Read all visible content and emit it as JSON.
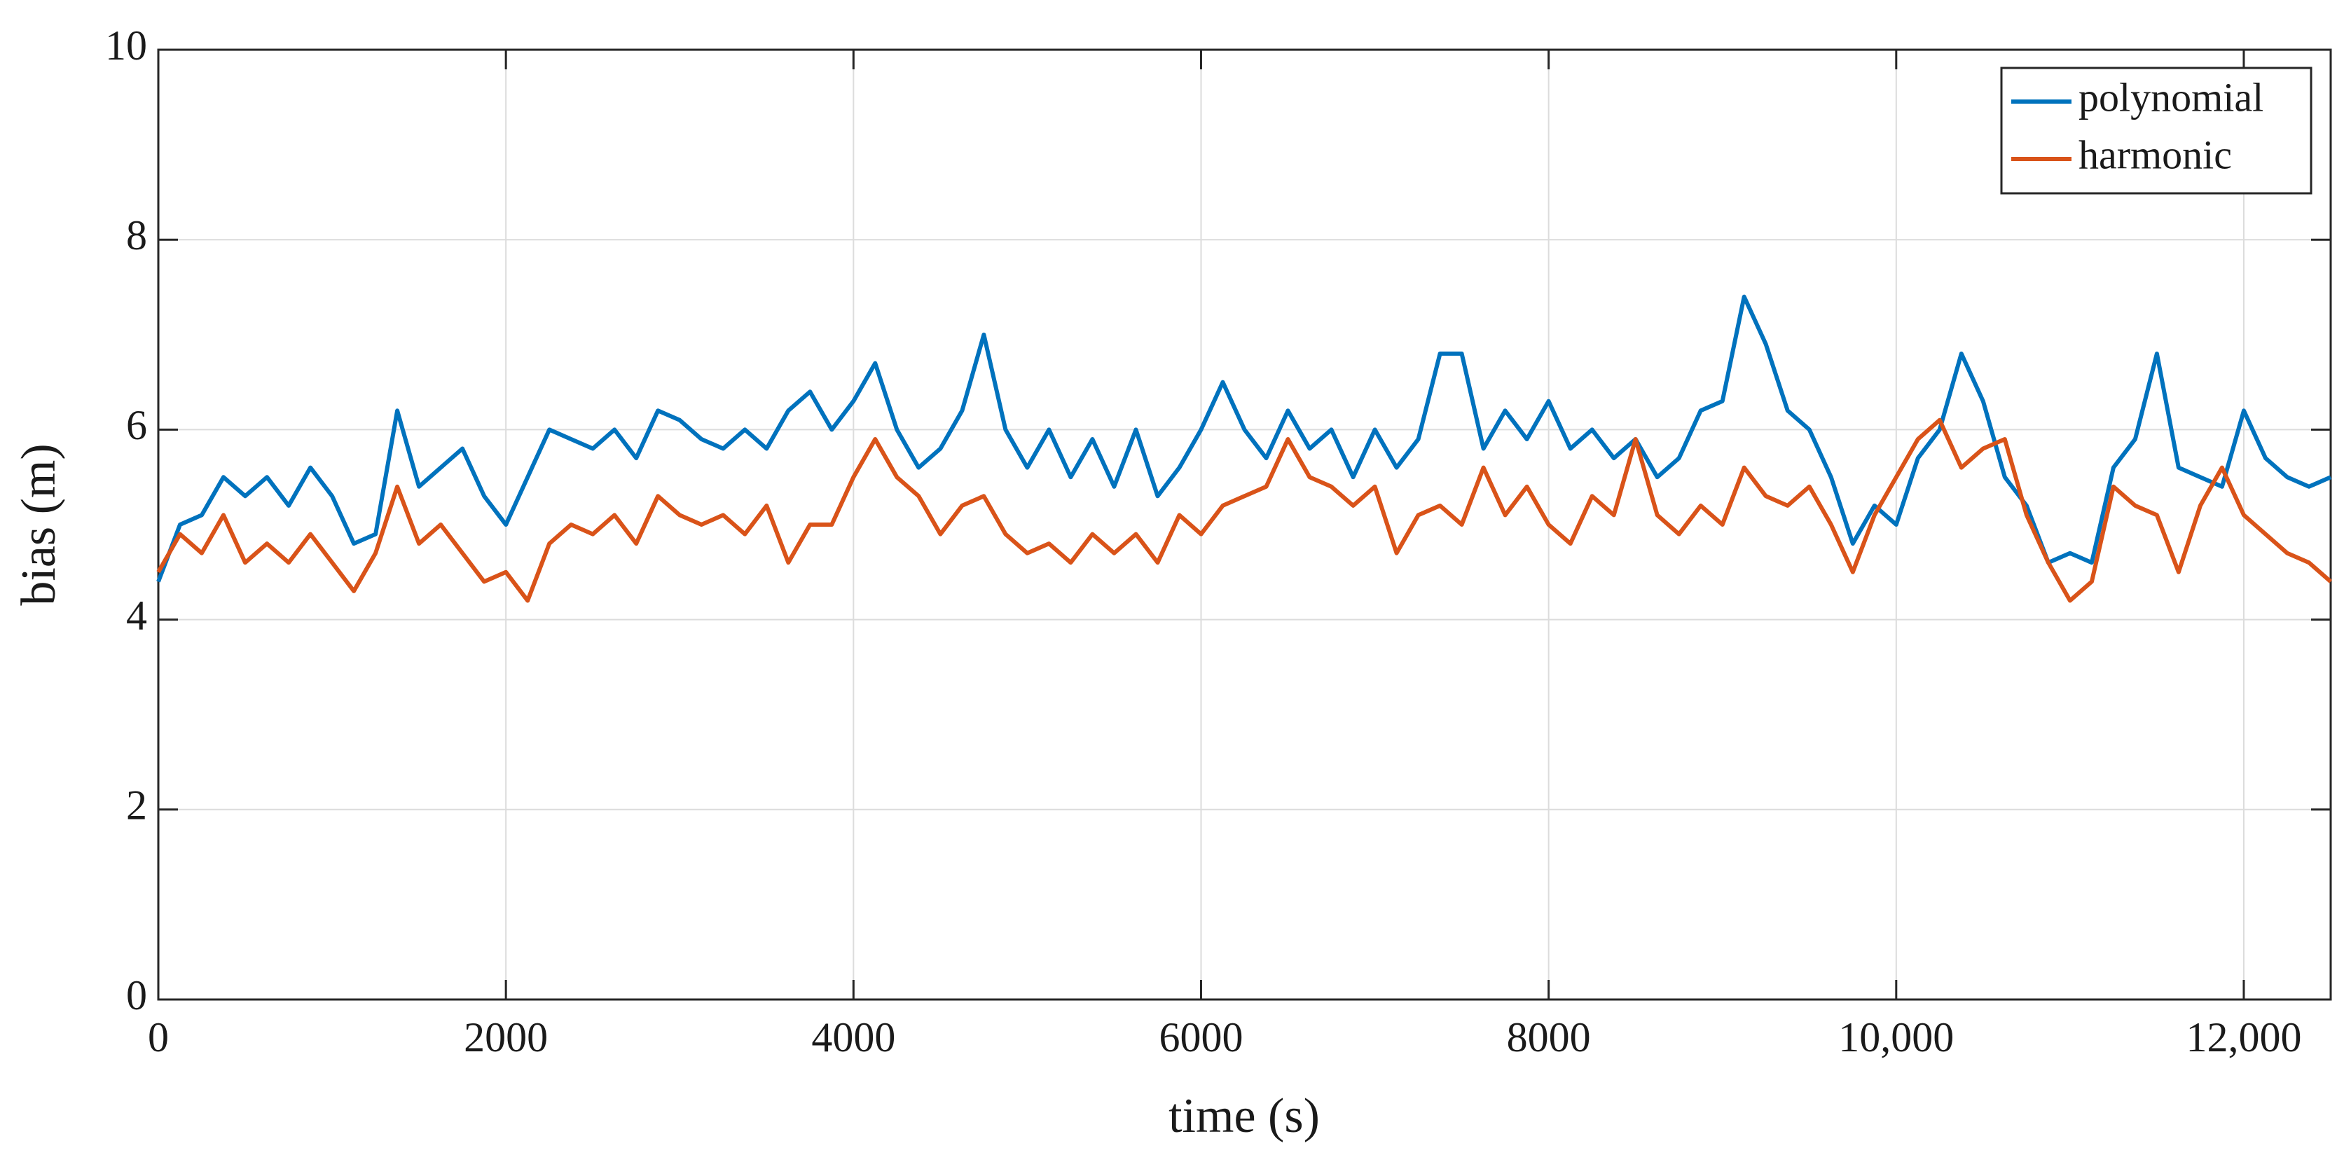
{
  "chart_data": {
    "type": "line",
    "xlabel": "time (s)",
    "ylabel": "bias (m)",
    "x": [
      0,
      125,
      250,
      375,
      500,
      625,
      750,
      875,
      1000,
      1125,
      1250,
      1375,
      1500,
      1625,
      1750,
      1875,
      2000,
      2125,
      2250,
      2375,
      2500,
      2625,
      2750,
      2875,
      3000,
      3125,
      3250,
      3375,
      3500,
      3625,
      3750,
      3875,
      4000,
      4125,
      4250,
      4375,
      4500,
      4625,
      4750,
      4875,
      5000,
      5125,
      5250,
      5375,
      5500,
      5625,
      5750,
      5875,
      6000,
      6125,
      6250,
      6375,
      6500,
      6625,
      6750,
      6875,
      7000,
      7125,
      7250,
      7375,
      7500,
      7625,
      7750,
      7875,
      8000,
      8125,
      8250,
      8375,
      8500,
      8625,
      8750,
      8875,
      9000,
      9125,
      9250,
      9375,
      9500,
      9625,
      9750,
      9875,
      10000,
      10125,
      10250,
      10375,
      10500,
      10625,
      10750,
      10875,
      11000,
      11125,
      11250,
      11375,
      11500,
      11625,
      11750,
      11875,
      12000,
      12125,
      12250,
      12375,
      12500
    ],
    "series": [
      {
        "name": "polynomial",
        "color": "#0072bd",
        "values": [
          4.4,
          5.0,
          5.1,
          5.5,
          5.3,
          5.5,
          5.2,
          5.6,
          5.3,
          4.8,
          4.9,
          6.2,
          5.4,
          5.6,
          5.8,
          5.3,
          5.0,
          5.5,
          6.0,
          5.9,
          5.8,
          6.0,
          5.7,
          6.2,
          6.1,
          5.9,
          5.8,
          6.0,
          5.8,
          6.2,
          6.4,
          6.0,
          6.3,
          6.7,
          6.0,
          5.6,
          5.8,
          6.2,
          7.0,
          6.0,
          5.6,
          6.0,
          5.5,
          5.9,
          5.4,
          6.0,
          5.3,
          5.6,
          6.0,
          6.5,
          6.0,
          5.7,
          6.2,
          5.8,
          6.0,
          5.5,
          6.0,
          5.6,
          5.9,
          6.8,
          6.8,
          5.8,
          6.2,
          5.9,
          6.3,
          5.8,
          6.0,
          5.7,
          5.9,
          5.5,
          5.7,
          6.2,
          6.3,
          7.4,
          6.9,
          6.2,
          6.0,
          5.5,
          4.8,
          5.2,
          5.0,
          5.7,
          6.0,
          6.8,
          6.3,
          5.5,
          5.2,
          4.6,
          4.7,
          4.6,
          5.6,
          5.9,
          6.8,
          5.6,
          5.5,
          5.4,
          6.2,
          5.7,
          5.5,
          5.4,
          5.5
        ]
      },
      {
        "name": "harmonic",
        "color": "#d95319",
        "values": [
          4.5,
          4.9,
          4.7,
          5.1,
          4.6,
          4.8,
          4.6,
          4.9,
          4.6,
          4.3,
          4.7,
          5.4,
          4.8,
          5.0,
          4.7,
          4.4,
          4.5,
          4.2,
          4.8,
          5.0,
          4.9,
          5.1,
          4.8,
          5.3,
          5.1,
          5.0,
          5.1,
          4.9,
          5.2,
          4.6,
          5.0,
          5.0,
          5.5,
          5.9,
          5.5,
          5.3,
          4.9,
          5.2,
          5.3,
          4.9,
          4.7,
          4.8,
          4.6,
          4.9,
          4.7,
          4.9,
          4.6,
          5.1,
          4.9,
          5.2,
          5.3,
          5.4,
          5.9,
          5.5,
          5.4,
          5.2,
          5.4,
          4.7,
          5.1,
          5.2,
          5.0,
          5.6,
          5.1,
          5.4,
          5.0,
          4.8,
          5.3,
          5.1,
          5.9,
          5.1,
          4.9,
          5.2,
          5.0,
          5.6,
          5.3,
          5.2,
          5.4,
          5.0,
          4.5,
          5.1,
          5.5,
          5.9,
          6.1,
          5.6,
          5.8,
          5.9,
          5.1,
          4.6,
          4.2,
          4.4,
          5.4,
          5.2,
          5.1,
          4.5,
          5.2,
          5.6,
          5.1,
          4.9,
          4.7,
          4.6,
          4.4
        ]
      }
    ],
    "xlim": [
      0,
      12500
    ],
    "xticks": [
      0,
      2000,
      4000,
      6000,
      8000,
      {
        "value": 10000,
        "label": "10,000"
      },
      {
        "value": 12000,
        "label": "12,000"
      }
    ],
    "ylim": [
      0,
      10
    ],
    "yticks": [
      0,
      2,
      4,
      6,
      8,
      10
    ],
    "grid": true,
    "legend": "upper right"
  }
}
